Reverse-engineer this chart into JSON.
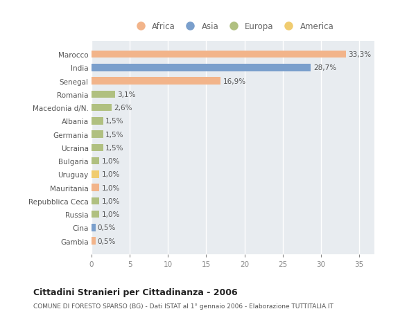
{
  "countries": [
    "Marocco",
    "India",
    "Senegal",
    "Romania",
    "Macedonia d/N.",
    "Albania",
    "Germania",
    "Ucraina",
    "Bulgaria",
    "Uruguay",
    "Mauritania",
    "Repubblica Ceca",
    "Russia",
    "Cina",
    "Gambia"
  ],
  "values": [
    33.3,
    28.7,
    16.9,
    3.1,
    2.6,
    1.5,
    1.5,
    1.5,
    1.0,
    1.0,
    1.0,
    1.0,
    1.0,
    0.5,
    0.5
  ],
  "labels": [
    "33,3%",
    "28,7%",
    "16,9%",
    "3,1%",
    "2,6%",
    "1,5%",
    "1,5%",
    "1,5%",
    "1,0%",
    "1,0%",
    "1,0%",
    "1,0%",
    "1,0%",
    "0,5%",
    "0,5%"
  ],
  "continent": [
    "Africa",
    "Asia",
    "Africa",
    "Europa",
    "Europa",
    "Europa",
    "Europa",
    "Europa",
    "Europa",
    "America",
    "Africa",
    "Europa",
    "Europa",
    "Asia",
    "Africa"
  ],
  "colors": {
    "Africa": "#F2B48A",
    "Asia": "#7A9FCC",
    "Europa": "#B0C080",
    "America": "#F0CC70"
  },
  "title": "Cittadini Stranieri per Cittadinanza - 2006",
  "subtitle": "COMUNE DI FORESTO SPARSO (BG) - Dati ISTAT al 1° gennaio 2006 - Elaborazione TUTTITALIA.IT",
  "xlim": [
    0,
    37
  ],
  "xticks": [
    0,
    5,
    10,
    15,
    20,
    25,
    30,
    35
  ],
  "background_color": "#ffffff",
  "plot_bg_color": "#e8ecf0",
  "bar_height": 0.55,
  "grid_color": "#ffffff",
  "label_fontsize": 7.5,
  "tick_fontsize": 7.5,
  "legend_order": [
    "Africa",
    "Asia",
    "Europa",
    "America"
  ]
}
